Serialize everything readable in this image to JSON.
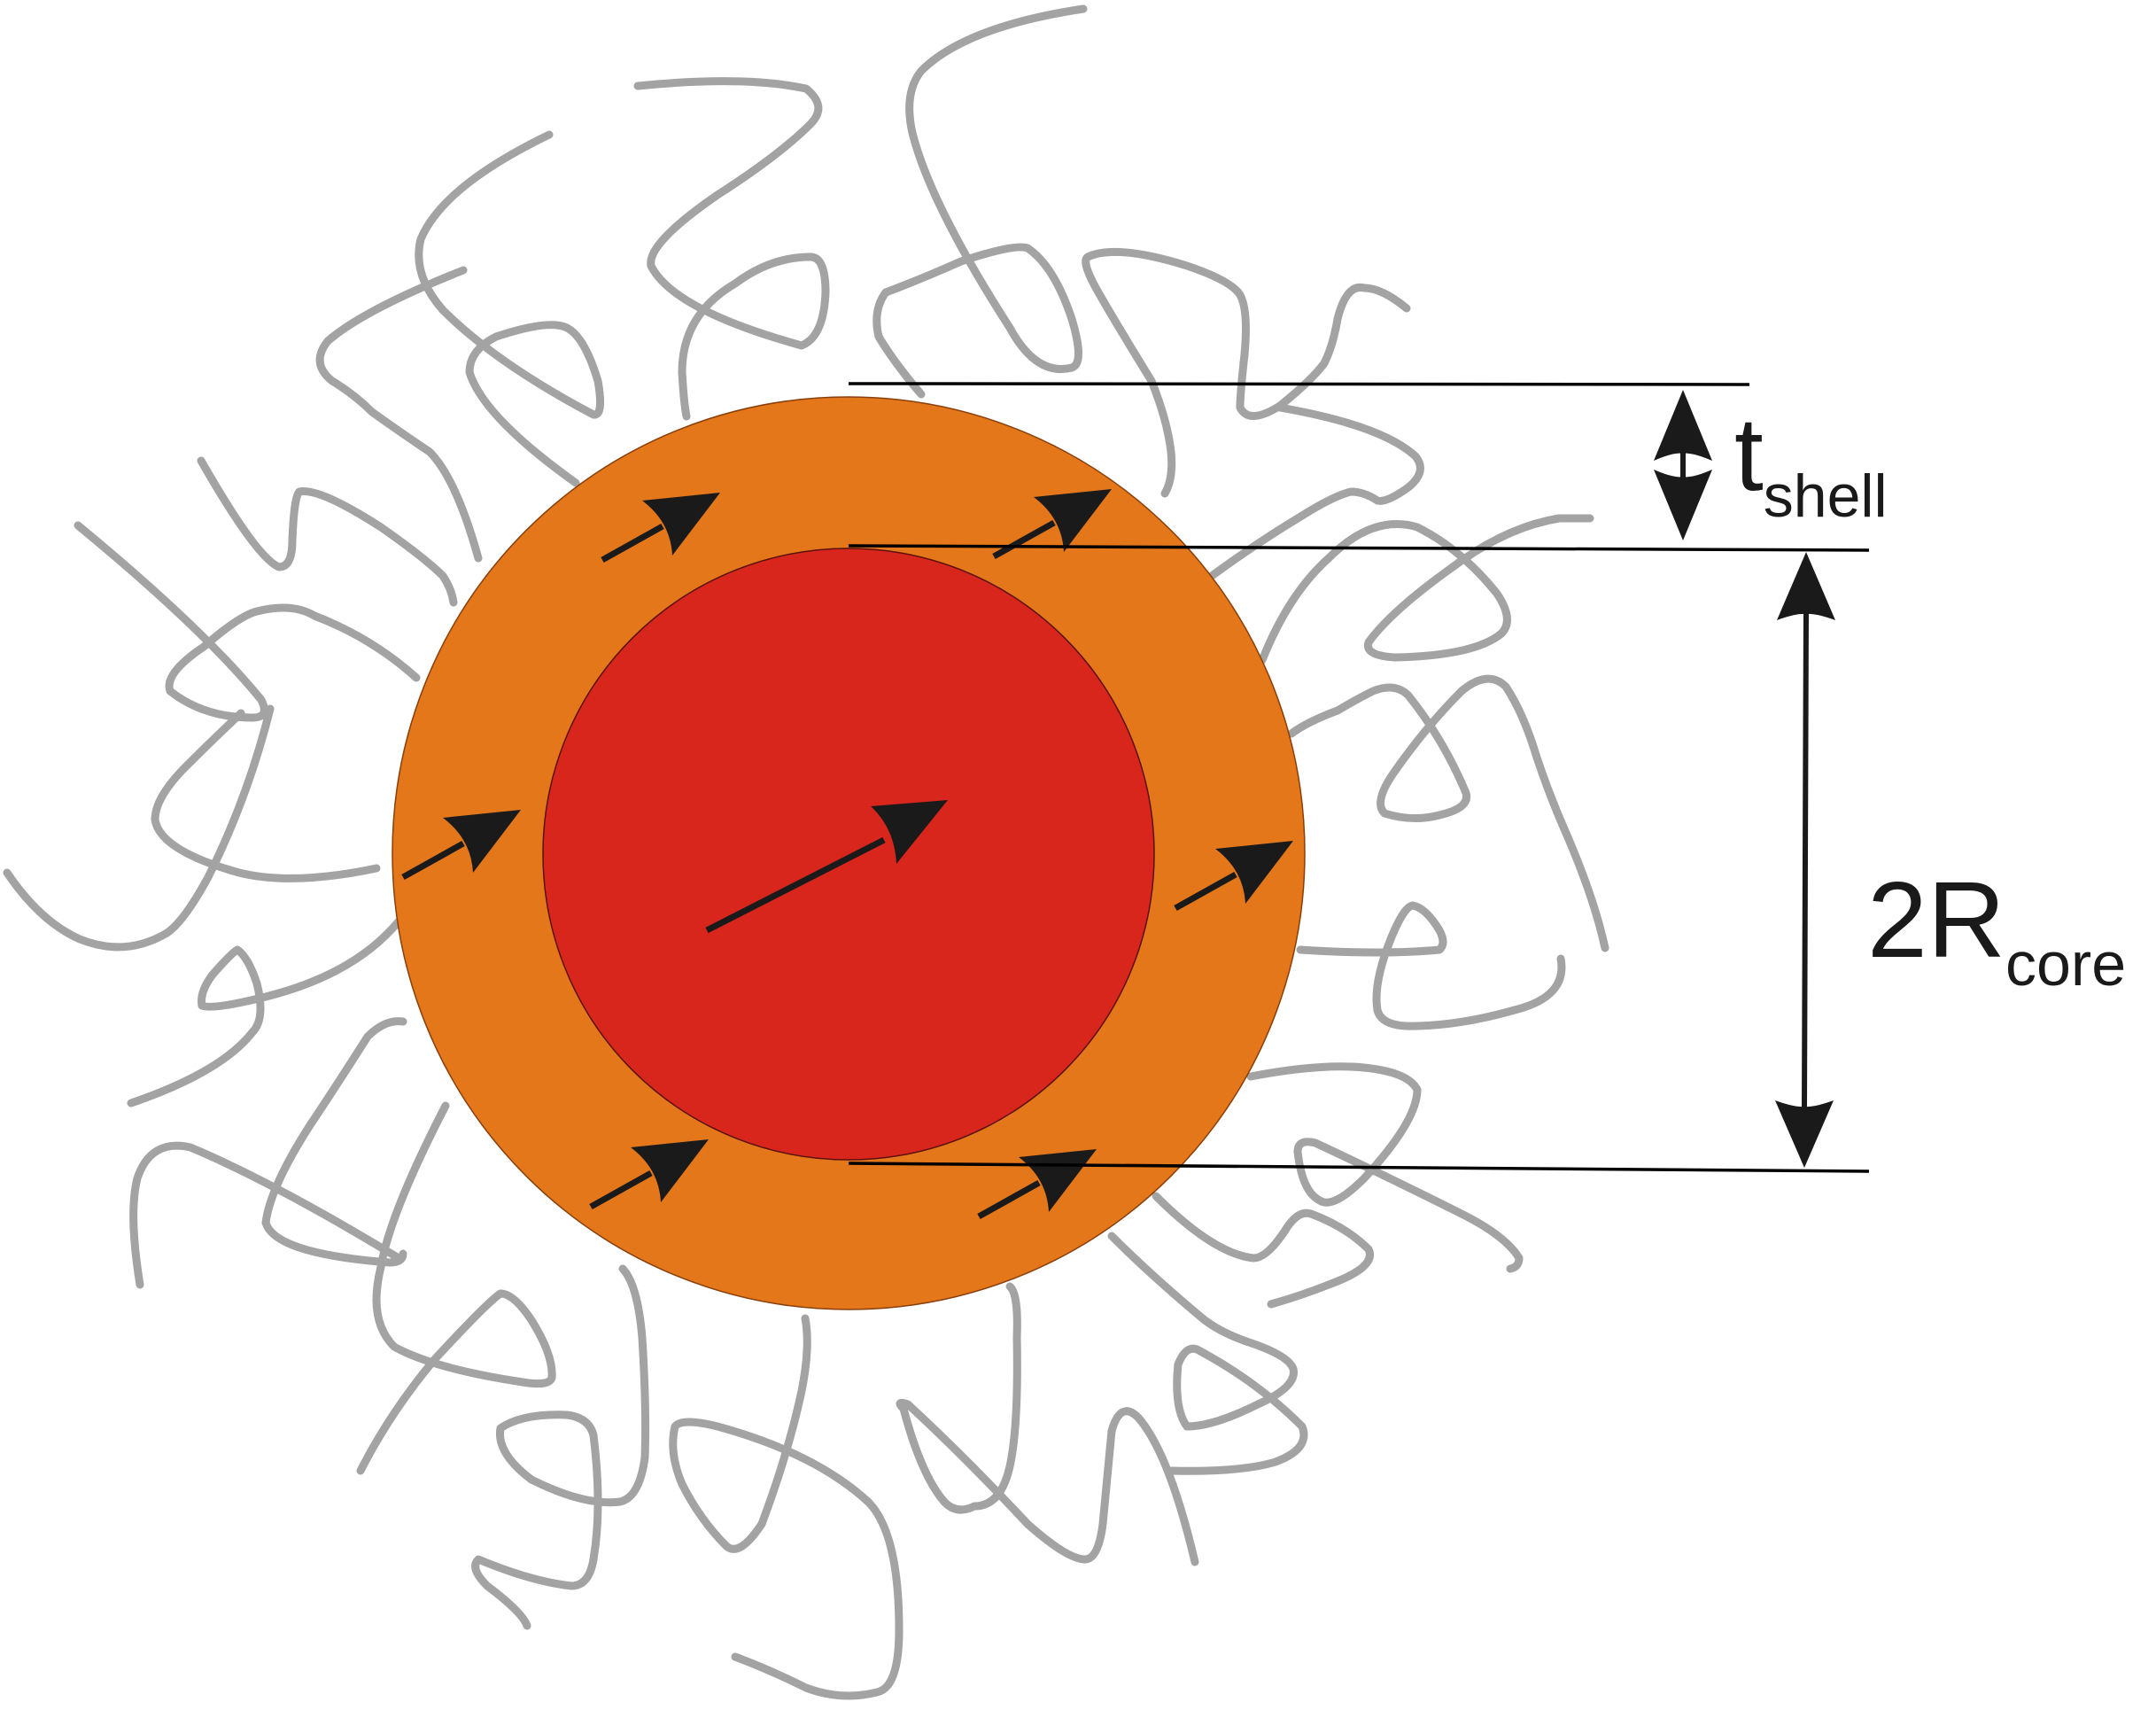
{
  "labels": {
    "shell_main": "t",
    "shell_sub": "shell",
    "core_main": "2R",
    "core_sub": "core"
  },
  "colors": {
    "shell": "#E4771A",
    "core": "#D8261D",
    "chain": "#A3A3A3",
    "arrow": "#1a1a1a",
    "background": "#ffffff"
  }
}
